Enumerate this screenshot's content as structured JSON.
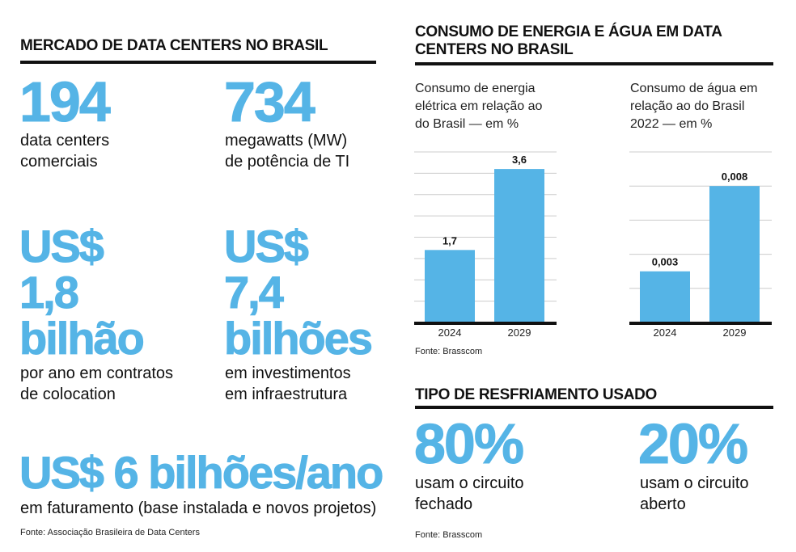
{
  "left": {
    "title": "MERCADO DE DATA CENTERS NO BRASIL",
    "stats": [
      {
        "value": "194",
        "desc1": "data centers",
        "desc2": "comerciais"
      },
      {
        "value": "734",
        "desc1": "megawatts (MW)",
        "desc2": "de potência de TI"
      },
      {
        "currency": "US$",
        "value": "1,8",
        "unit": "bilhão",
        "desc1": "por ano em contratos",
        "desc2": "de colocation"
      },
      {
        "currency": "US$",
        "value": "7,4",
        "unit": "bilhões",
        "desc1": "em investimentos",
        "desc2": "em infraestrutura"
      },
      {
        "value": "US$ 6 bilhões/ano",
        "desc1": "em faturamento (base instalada e novos projetos)"
      }
    ],
    "source": "Fonte: Associação Brasileira de Data Centers"
  },
  "right": {
    "title_line1": "CONSUMO DE ENERGIA E ÁGUA EM DATA",
    "title_line2": "CENTERS NO BRASIL",
    "source": "Fonte: Brasscom",
    "cooling": {
      "title": "TIPO DE RESFRIAMENTO USADO",
      "items": [
        {
          "value": "80%",
          "desc1": "usam o circuito",
          "desc2": "fechado"
        },
        {
          "value": "20%",
          "desc1": "usam o circuito",
          "desc2": "aberto"
        }
      ],
      "source": "Fonte: Brasscom"
    }
  },
  "colors": {
    "accent": "#55b4e6",
    "text": "#111111"
  },
  "chart_data": [
    {
      "type": "bar",
      "title_lines": [
        "Consumo de energia",
        "elétrica em relação ao",
        "do Brasil — em %"
      ],
      "categories": [
        "2024",
        "2029"
      ],
      "values": [
        1.7,
        3.6
      ],
      "labels": [
        "1,7",
        "3,6"
      ],
      "ylim": [
        0,
        4
      ],
      "grid_step": 0.5,
      "grid": true
    },
    {
      "type": "bar",
      "title_lines": [
        "Consumo de água em",
        "relação ao do Brasil",
        "2022 — em %"
      ],
      "categories": [
        "2024",
        "2029"
      ],
      "values": [
        0.003,
        0.008
      ],
      "labels": [
        "0,003",
        "0,008"
      ],
      "ylim": [
        0,
        0.01
      ],
      "grid_step": 0.002,
      "grid": true
    }
  ]
}
